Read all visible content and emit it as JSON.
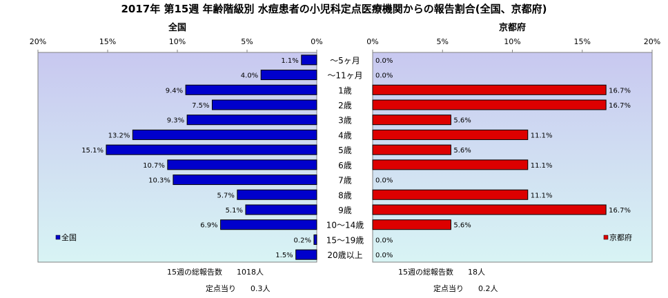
{
  "title": "2017年 第15週 年齢階級別 水痘患者の小児科定点医療機関からの報告割合(全国、京都府)",
  "colors": {
    "national": "#0000cc",
    "kyoto": "#dd0000",
    "plot_bg_top": "#c8c8f0",
    "plot_bg_bottom": "#d8f4f4"
  },
  "chart_data": [
    {
      "type": "bar",
      "orientation": "horizontal",
      "title": "全国",
      "legend": "全国",
      "legend_position": "bottom-left",
      "x_direction": "reversed",
      "xlim": [
        0,
        20
      ],
      "ticks": [
        "0%",
        "5%",
        "10%",
        "15%",
        "20%"
      ],
      "categories": [
        "～5ヶ月",
        "～11ヶ月",
        "1歳",
        "2歳",
        "3歳",
        "4歳",
        "5歳",
        "6歳",
        "7歳",
        "8歳",
        "9歳",
        "10～14歳",
        "15～19歳",
        "20歳以上"
      ],
      "values": [
        1.1,
        4.0,
        9.4,
        7.5,
        9.3,
        13.2,
        15.1,
        10.7,
        10.3,
        5.7,
        5.1,
        6.9,
        0.2,
        1.5
      ],
      "labels": [
        "1.1%",
        "4.0%",
        "9.4%",
        "7.5%",
        "9.3%",
        "13.2%",
        "15.1%",
        "10.7%",
        "10.3%",
        "5.7%",
        "5.1%",
        "6.9%",
        "0.2%",
        "1.5%"
      ]
    },
    {
      "type": "bar",
      "orientation": "horizontal",
      "title": "京都府",
      "legend": "京都府",
      "legend_position": "bottom-right",
      "x_direction": "normal",
      "xlim": [
        0,
        20
      ],
      "ticks": [
        "0%",
        "5%",
        "10%",
        "15%",
        "20%"
      ],
      "categories": [
        "～5ヶ月",
        "～11ヶ月",
        "1歳",
        "2歳",
        "3歳",
        "4歳",
        "5歳",
        "6歳",
        "7歳",
        "8歳",
        "9歳",
        "10～14歳",
        "15～19歳",
        "20歳以上"
      ],
      "values": [
        0.0,
        0.0,
        16.7,
        16.7,
        5.6,
        11.1,
        5.6,
        11.1,
        0.0,
        11.1,
        16.7,
        5.6,
        0.0,
        0.0
      ],
      "labels": [
        "0.0%",
        "0.0%",
        "16.7%",
        "16.7%",
        "5.6%",
        "11.1%",
        "5.6%",
        "11.1%",
        "0.0%",
        "11.1%",
        "16.7%",
        "5.6%",
        "0.0%",
        "0.0%"
      ]
    }
  ],
  "footer": {
    "national": {
      "total_label": "15週の総報告数",
      "total_value": "1018人",
      "per_label": "定点当り",
      "per_value": "0.3人"
    },
    "kyoto": {
      "total_label": "15週の総報告数",
      "total_value": "18人",
      "per_label": "定点当り",
      "per_value": "0.2人"
    }
  }
}
